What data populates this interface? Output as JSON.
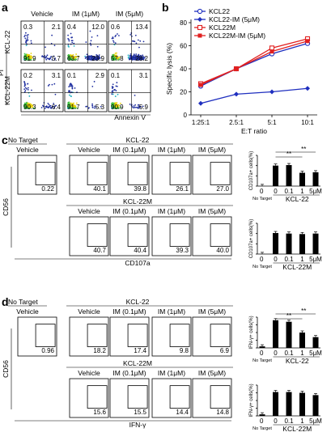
{
  "panels": {
    "a": {
      "letter": "a",
      "conditions": [
        "Vehicle",
        "IM (1μM)",
        "IM (5μM)"
      ],
      "rows": [
        {
          "label": "KCL-22",
          "quads": [
            {
              "ul": "0.3",
              "ur": "2.1",
              "ll": "91.9",
              "lr": "5.7"
            },
            {
              "ul": "0.4",
              "ur": "12.0",
              "ll": "63.7",
              "lr": "23.9"
            },
            {
              "ul": "0.6",
              "ur": "13.4",
              "ll": "57.8",
              "lr": "28.2"
            }
          ]
        },
        {
          "label": "KCL-22M",
          "quads": [
            {
              "ul": "0.2",
              "ur": "3.1",
              "ll": "90.3",
              "lr": "6.4"
            },
            {
              "ul": "0.1",
              "ur": "2.9",
              "ll": "91.7",
              "lr": "5.3"
            },
            {
              "ul": "0.1",
              "ur": "3.1",
              "ll": "90.9",
              "lr": "5.9"
            }
          ]
        }
      ],
      "ylabel": "PI",
      "xlabel": "Annexin V"
    },
    "b": {
      "letter": "b",
      "chart_data": {
        "type": "line",
        "categories": [
          "1:25:1",
          "2.5:1",
          "5:1",
          "10:1"
        ],
        "ylabel": "Specific lysis (%)",
        "xlabel": "E:T ratio",
        "ylim": [
          0,
          80
        ],
        "yticks": [
          "0",
          "20",
          "40",
          "60",
          "80"
        ],
        "series": [
          {
            "name": "KCL22",
            "values": [
              25,
              40,
              53,
              62
            ],
            "color": "#1f2fbf",
            "marker": "circle-open"
          },
          {
            "name": "KCL22-IM (5μM)",
            "values": [
              10,
              18,
              20,
              23
            ],
            "color": "#1f2fbf",
            "marker": "diamond"
          },
          {
            "name": "KCL22M",
            "values": [
              27,
              40,
              58,
              66
            ],
            "color": "#e02020",
            "marker": "square-open"
          },
          {
            "name": "KCL22M-IM (5μM)",
            "values": [
              26,
              40,
              55,
              64
            ],
            "color": "#e02020",
            "marker": "square"
          }
        ]
      }
    },
    "c": {
      "letter": "c",
      "no_target": "No Target",
      "vehicle": "Vehicle",
      "group1": "KCL-22",
      "group2": "KCL-22M",
      "conds": [
        "Vehicle",
        "IM (0.1μM)",
        "IM (1μM)",
        "IM (5μM)"
      ],
      "nt_value": "0.22",
      "row1_values": [
        "40.1",
        "39.8",
        "26.1",
        "27.0"
      ],
      "row2_values": [
        "40.7",
        "40.4",
        "39.3",
        "40.0"
      ],
      "ylabel": "CD56",
      "xlabel": "CD107a",
      "bar1": {
        "chart_data": {
          "type": "bar",
          "categories": [
            "No Target",
            "0",
            "0.1",
            "1",
            "5μM"
          ],
          "values": [
            0.2,
            40,
            41,
            26,
            27
          ],
          "ylim": [
            0,
            60
          ],
          "yticks": [
            "0",
            "20",
            "40",
            "60"
          ],
          "ylabel": "CD107a+ cells(%)",
          "group_label": "KCL-22",
          "sig": [
            "**",
            "**"
          ]
        }
      },
      "bar2": {
        "chart_data": {
          "type": "bar",
          "categories": [
            "No Target",
            "0",
            "0.1",
            "1",
            "5μM"
          ],
          "values": [
            0.2,
            41,
            40,
            39,
            40
          ],
          "ylim": [
            0,
            60
          ],
          "yticks": [
            "0",
            "20",
            "40",
            "60"
          ],
          "ylabel": "CD107a+ cells(%)",
          "group_label": "KCL-22M"
        }
      }
    },
    "d": {
      "letter": "d",
      "no_target": "No Target",
      "vehicle": "Vehicle",
      "group1": "KCL-22",
      "group2": "KCL-22M",
      "conds": [
        "Vehicle",
        "IM (0.1μM)",
        "IM (1μM)",
        "IM (5μM)"
      ],
      "nt_value": "0.96",
      "row1_values": [
        "18.2",
        "17.4",
        "9.8",
        "6.9"
      ],
      "row2_values": [
        "15.6",
        "15.5",
        "14.4",
        "14.8"
      ],
      "ylabel": "CD56",
      "xlabel": "IFN-γ",
      "bar1": {
        "chart_data": {
          "type": "bar",
          "categories": [
            "No Target",
            "0",
            "0.1",
            "1",
            "5μM"
          ],
          "values": [
            1,
            18,
            17,
            10,
            7
          ],
          "ylim": [
            0,
            20
          ],
          "yticks": [
            "0",
            "5",
            "10",
            "15",
            "20"
          ],
          "ylabel": "IFN-γ+ cells(%)",
          "group_label": "KCL-22",
          "sig": [
            "**",
            "**"
          ]
        }
      },
      "bar2": {
        "chart_data": {
          "type": "bar",
          "categories": [
            "No Target",
            "0",
            "0.1",
            "1",
            "5μM"
          ],
          "values": [
            1,
            15.5,
            15.5,
            15,
            13.5
          ],
          "ylim": [
            0,
            20
          ],
          "yticks": [
            "0",
            "5",
            "10",
            "15",
            "20"
          ],
          "ylabel": "IFN-γ+ cells(%)",
          "group_label": "KCL-22M"
        }
      }
    }
  }
}
